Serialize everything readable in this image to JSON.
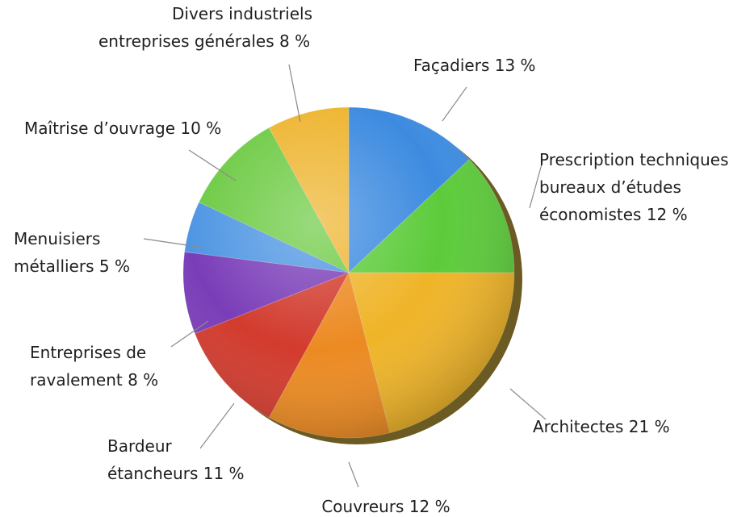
{
  "chart_data": {
    "type": "pie",
    "title": "",
    "slices": [
      {
        "name": "Façadiers",
        "value": 13,
        "color": "#3d8be0",
        "lines": [
          "Façadiers 13 %"
        ]
      },
      {
        "name": "Prescription techniques bureaux d'études économistes",
        "value": 12,
        "color": "#5ccb3a",
        "lines": [
          "Prescription techniques",
          "bureaux d’études",
          "économistes 12 %"
        ]
      },
      {
        "name": "Architectes",
        "value": 21,
        "color": "#efb428",
        "lines": [
          "Architectes 21 %"
        ]
      },
      {
        "name": "Couvreurs",
        "value": 12,
        "color": "#ec8a22",
        "lines": [
          "Couvreurs 12 %"
        ]
      },
      {
        "name": "Bardeur étancheurs",
        "value": 11,
        "color": "#d23b2e",
        "lines": [
          "Bardeur",
          "étancheurs 11 %"
        ]
      },
      {
        "name": "Entreprises de ravalement",
        "value": 8,
        "color": "#7a3db8",
        "lines": [
          "Entreprises de",
          "ravalement 8 %"
        ]
      },
      {
        "name": "Menuisiers métalliers",
        "value": 5,
        "color": "#4f96e3",
        "lines": [
          "Menuisiers",
          "métalliers 5 %"
        ]
      },
      {
        "name": "Maîtrise d'ouvrage",
        "value": 10,
        "color": "#6ecb45",
        "lines": [
          "Maîtrise d’ouvrage 10 %"
        ]
      },
      {
        "name": "Divers industriels entreprises générales",
        "value": 8,
        "color": "#eeb531",
        "lines": [
          "Divers industriels",
          "entreprises générales 8 %"
        ]
      }
    ]
  }
}
